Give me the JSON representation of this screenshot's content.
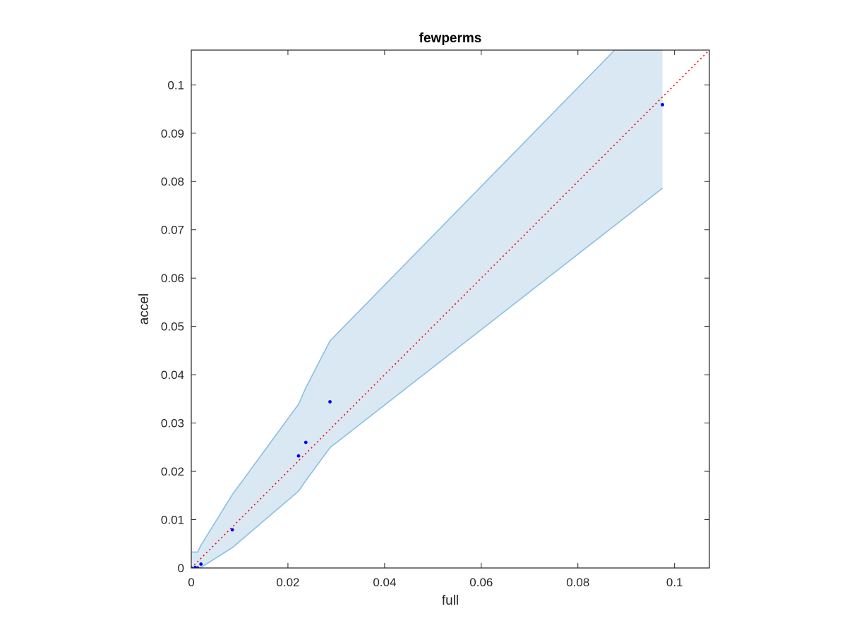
{
  "chart_data": {
    "type": "scatter",
    "title": "fewperms",
    "xlabel": "full",
    "ylabel": "accel",
    "xlim": [
      0,
      0.1072
    ],
    "ylim": [
      0,
      0.1072
    ],
    "grid": false,
    "x_ticks": [
      0,
      0.02,
      0.04,
      0.06,
      0.08,
      0.1
    ],
    "x_tick_labels": [
      "0",
      "0.02",
      "0.04",
      "0.06",
      "0.08",
      "0.1"
    ],
    "y_ticks": [
      0,
      0.01,
      0.02,
      0.03,
      0.04,
      0.05,
      0.06,
      0.07,
      0.08,
      0.09,
      0.1
    ],
    "y_tick_labels": [
      "0",
      "0.01",
      "0.02",
      "0.03",
      "0.04",
      "0.05",
      "0.06",
      "0.07",
      "0.08",
      "0.09",
      "0.1"
    ],
    "band": {
      "upper": [
        [
          0,
          0.0033
        ],
        [
          0.0013,
          0.0033
        ],
        [
          0.002,
          0.0047
        ],
        [
          0.0085,
          0.0152
        ],
        [
          0.0222,
          0.0339
        ],
        [
          0.0237,
          0.0373
        ],
        [
          0.0287,
          0.047
        ],
        [
          0.0876,
          0.1072
        ],
        [
          0.0975,
          0.1072
        ]
      ],
      "lower": [
        [
          0,
          0
        ],
        [
          0.0013,
          0
        ],
        [
          0.002,
          0.0001
        ],
        [
          0.0085,
          0.0042
        ],
        [
          0.0222,
          0.0159
        ],
        [
          0.0237,
          0.0181
        ],
        [
          0.0287,
          0.0249
        ],
        [
          0.0975,
          0.0786
        ]
      ],
      "fill_color": "#dae8f4",
      "edge_color": "#8bbfdf"
    },
    "reference_line": {
      "x": [
        0,
        0.1072
      ],
      "y": [
        0,
        0.1072
      ],
      "style": "dotted",
      "color": "#ff0000"
    },
    "points": {
      "x": [
        0,
        0.0008,
        0.0013,
        0.002,
        0.0085,
        0.0222,
        0.0237,
        0.0287,
        0.0975
      ],
      "y": [
        0,
        0.0001,
        0,
        0.0008,
        0.0079,
        0.0232,
        0.026,
        0.0344,
        0.0959
      ],
      "color": "#0000ff"
    }
  }
}
